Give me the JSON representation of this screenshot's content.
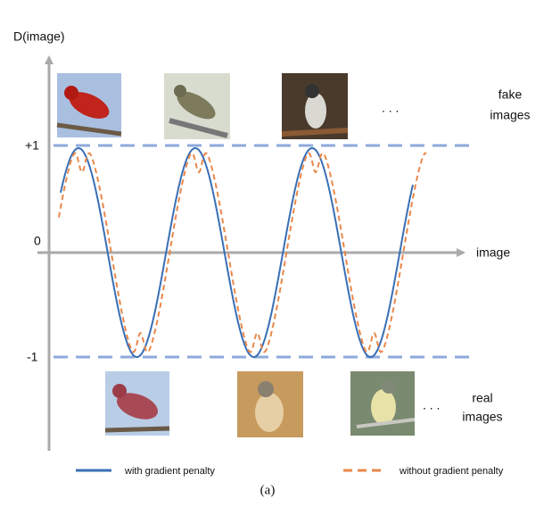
{
  "axes": {
    "y_label": "D(image)",
    "x_label": "image",
    "tick_plus": "+1",
    "tick_zero": "0",
    "tick_minus": "-1"
  },
  "fake": {
    "ellipsis": ". . .",
    "label": [
      "fake",
      "images"
    ]
  },
  "real": {
    "ellipsis": ". . .",
    "label": [
      "real",
      "images"
    ]
  },
  "legend": {
    "solid": "with gradient penalty",
    "dashed": "without gradient penalty"
  },
  "caption": "(a)"
}
